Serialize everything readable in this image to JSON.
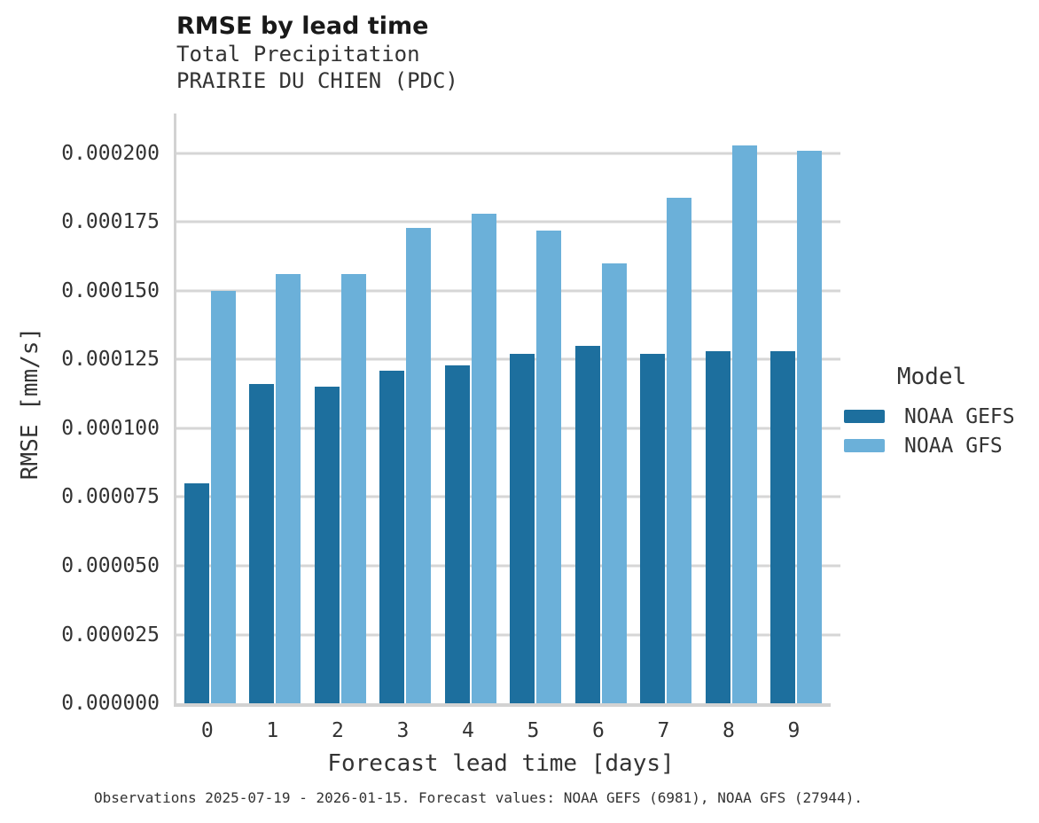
{
  "header": {
    "title": "RMSE by lead time",
    "subtitle_line1": "Total Precipitation",
    "subtitle_line2": "PRAIRIE DU CHIEN (PDC)"
  },
  "chart_data": {
    "type": "bar",
    "title": "RMSE by lead time",
    "subtitle": [
      "Total Precipitation",
      "PRAIRIE DU CHIEN (PDC)"
    ],
    "xlabel": "Forecast lead time [days]",
    "ylabel": "RMSE [mm/s]",
    "categories": [
      "0",
      "1",
      "2",
      "3",
      "4",
      "5",
      "6",
      "7",
      "8",
      "9"
    ],
    "series": [
      {
        "name": "NOAA GEFS",
        "color": "#1d6f9e",
        "values": [
          8e-05,
          0.000116,
          0.000115,
          0.000121,
          0.000123,
          0.000127,
          0.00013,
          0.000127,
          0.000128,
          0.000128
        ]
      },
      {
        "name": "NOAA GFS",
        "color": "#6bb0d9",
        "values": [
          0.00015,
          0.000156,
          0.000156,
          0.000173,
          0.000178,
          0.000172,
          0.00016,
          0.000184,
          0.000203,
          0.000201
        ]
      }
    ],
    "ylim": [
      0,
      0.0002145
    ],
    "yticks": [
      0,
      2.5e-05,
      5e-05,
      7.5e-05,
      0.0001,
      0.000125,
      0.00015,
      0.000175,
      0.0002
    ],
    "ytick_labels": [
      "0.000000",
      "0.000025",
      "0.000050",
      "0.000075",
      "0.000100",
      "0.000125",
      "0.000150",
      "0.000175",
      "0.000200"
    ],
    "grid": true,
    "legend_title": "Model",
    "legend_position": "right"
  },
  "footer": {
    "caption": "Observations 2025-07-19 - 2026-01-15. Forecast values: NOAA GEFS (6981), NOAA GFS (27944)."
  }
}
